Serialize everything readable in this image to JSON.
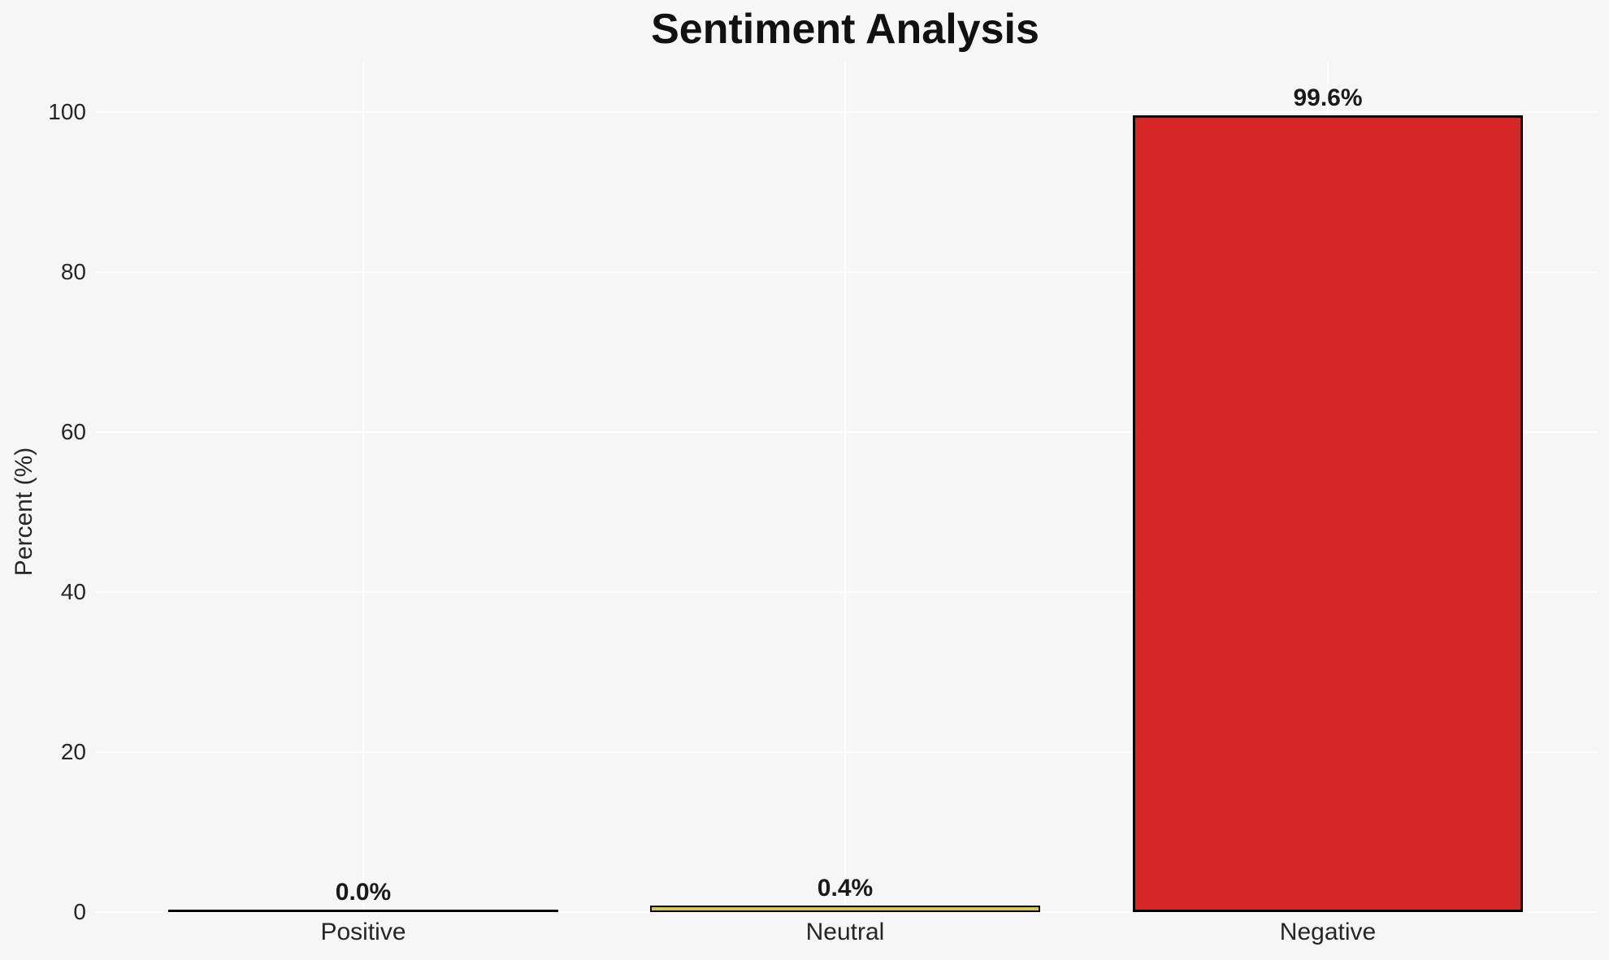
{
  "chart_data": {
    "type": "bar",
    "title": "Sentiment Analysis",
    "xlabel": "",
    "ylabel": "Percent (%)",
    "categories": [
      "Positive",
      "Neutral",
      "Negative"
    ],
    "values": [
      0.0,
      0.4,
      99.6
    ],
    "value_labels": [
      "0.0%",
      "0.4%",
      "99.6%"
    ],
    "yticks": [
      0,
      20,
      40,
      60,
      80,
      100
    ],
    "ylim": [
      0,
      106.4
    ],
    "grid": true,
    "legend": "none",
    "bar_fill_colors": [
      null,
      "#d6c84f",
      "#d62728"
    ],
    "bar_edge_color": "#000000",
    "colors": {
      "figure_background": "#f6f6f6",
      "grid": "#ffffff",
      "title_text": "#111111",
      "axis_text": "#262626",
      "value_label_text": "#1a1a1a"
    }
  }
}
